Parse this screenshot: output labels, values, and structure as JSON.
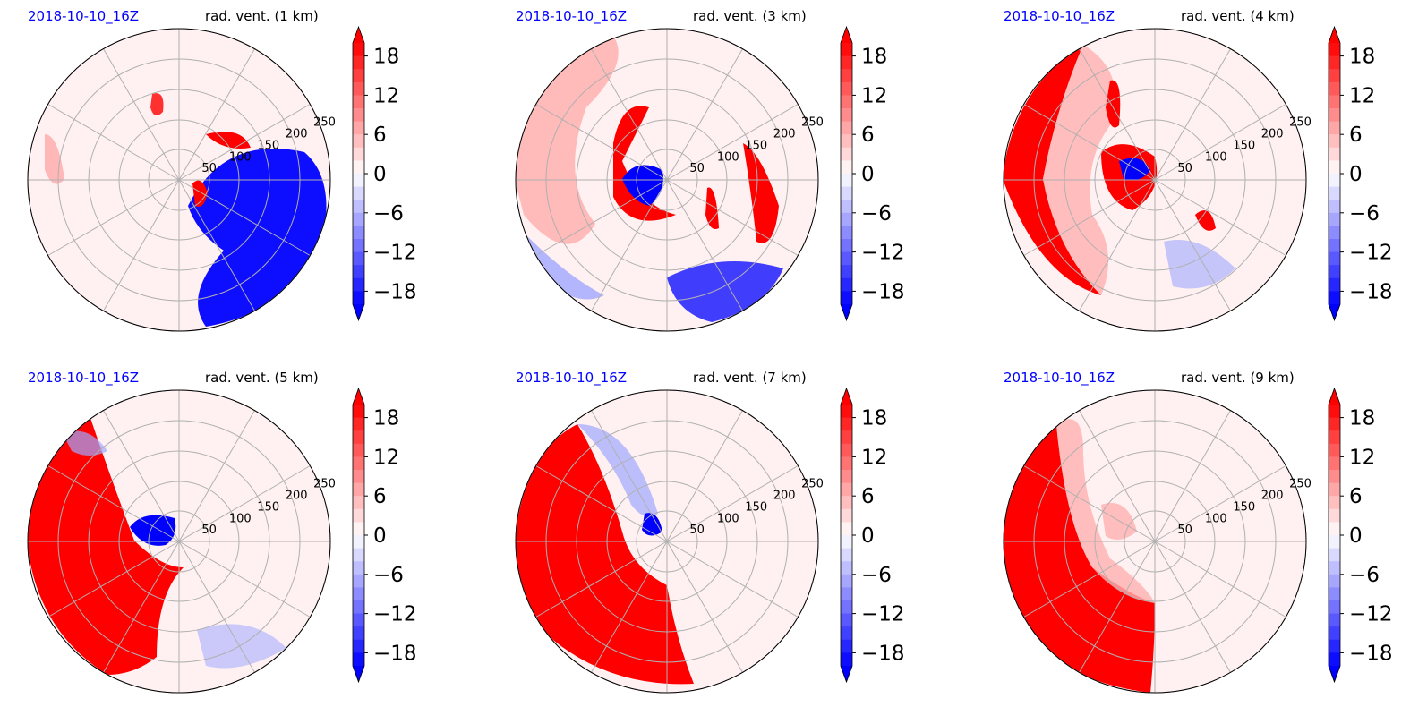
{
  "panels": [
    {
      "date": "2018-10-10_16Z",
      "title": "rad. vent. (1 km)"
    },
    {
      "date": "2018-10-10_16Z",
      "title": "rad. vent. (3 km)"
    },
    {
      "date": "2018-10-10_16Z",
      "title": "rad. vent. (4 km)"
    },
    {
      "date": "2018-10-10_16Z",
      "title": "rad. vent. (5 km)"
    },
    {
      "date": "2018-10-10_16Z",
      "title": "rad. vent. (7 km)"
    },
    {
      "date": "2018-10-10_16Z",
      "title": "rad. vent. (9 km)"
    }
  ],
  "chart_data": {
    "type": "heatmap",
    "projection": "polar",
    "radial_ticks": [
      "50",
      "100",
      "150",
      "200",
      "250"
    ],
    "colorbar": {
      "ticks": [
        "18",
        "12",
        "6",
        "0",
        "−6",
        "−12",
        "−18"
      ],
      "range": [
        -20,
        20
      ],
      "extend": "both",
      "colormap": "bwr",
      "low_color": "#0000ff",
      "mid_color": "#ffffff",
      "high_color": "#ff0000"
    },
    "grid": true,
    "levels_km": [
      1,
      3,
      4,
      5,
      7,
      9
    ]
  }
}
